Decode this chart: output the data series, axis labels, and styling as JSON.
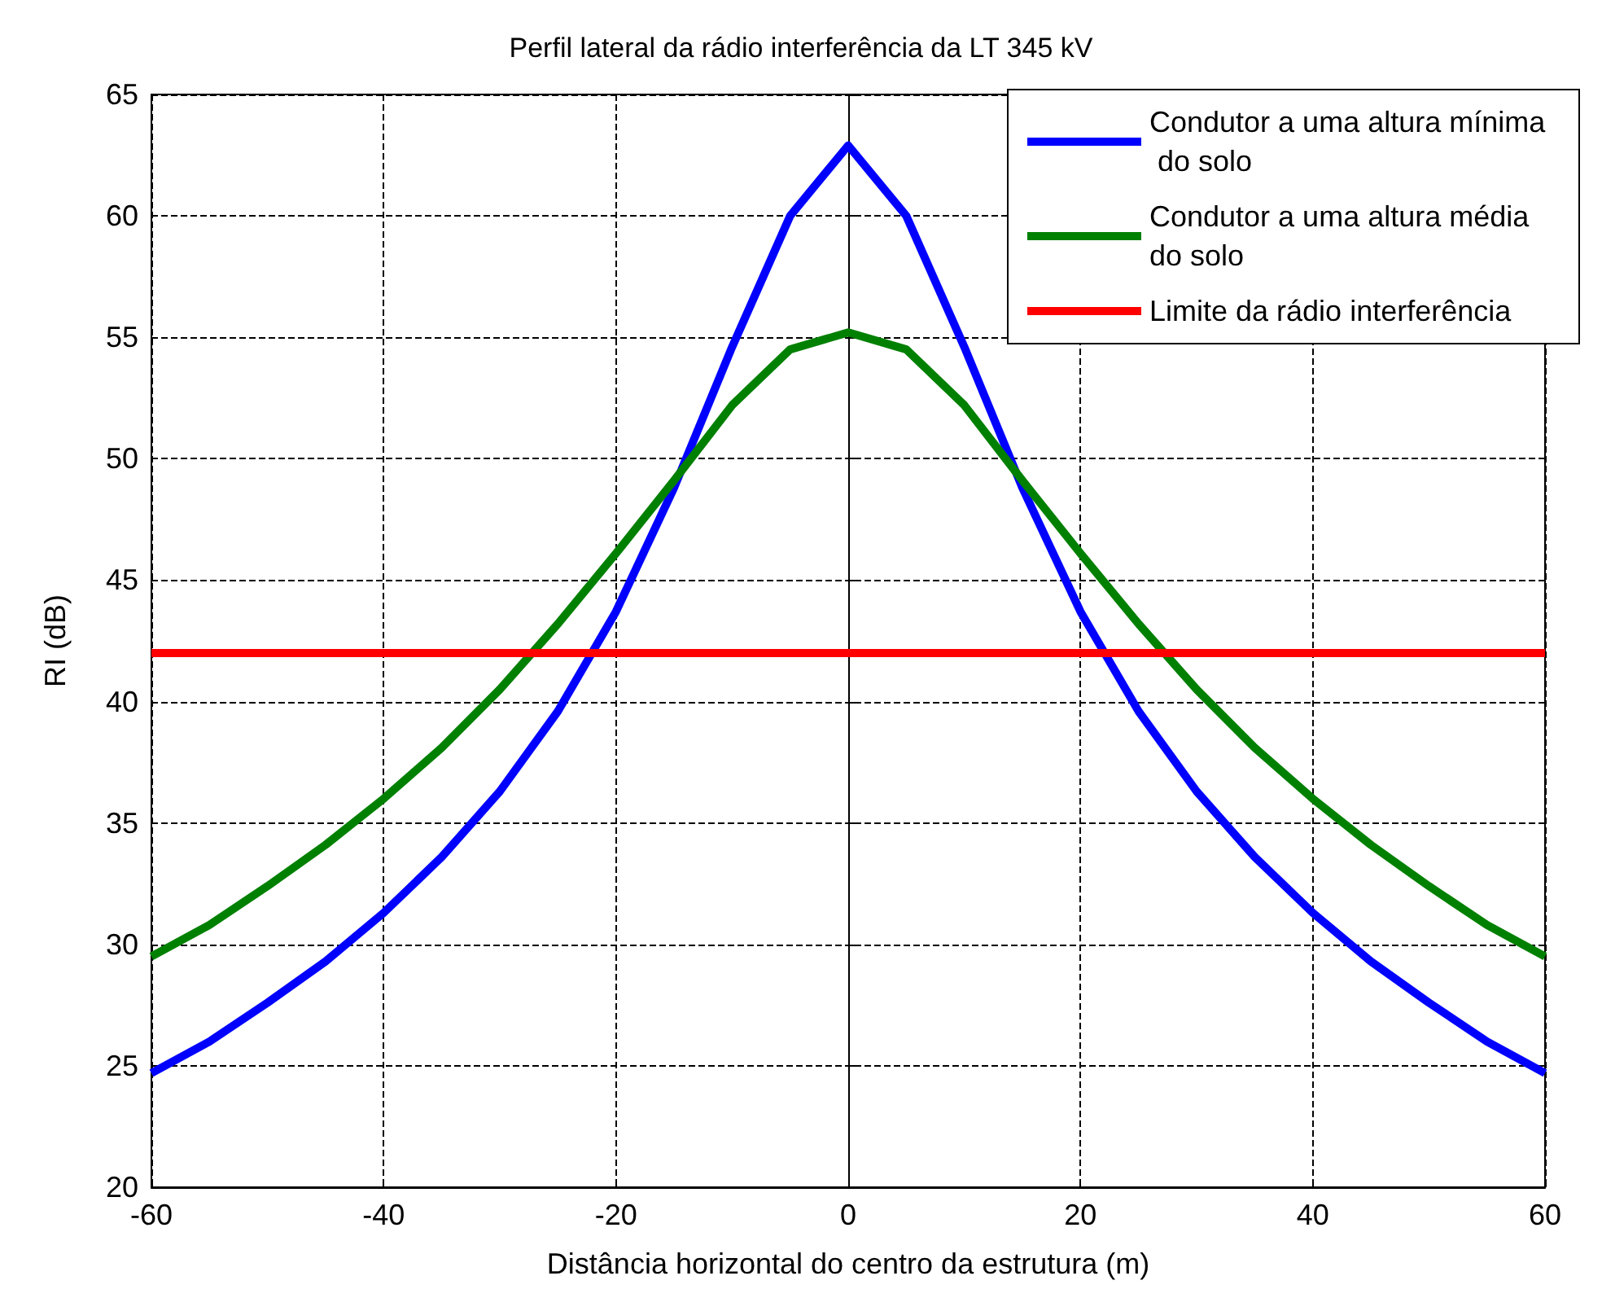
{
  "chart_data": {
    "type": "line",
    "title": "Perfil lateral da rádio interferência da LT 345 kV",
    "xlabel": "Distância horizontal do centro da estrutura (m)",
    "ylabel": "RI (dB)",
    "x": [
      -60,
      -55,
      -50,
      -45,
      -40,
      -35,
      -30,
      -25,
      -20,
      -15,
      -10,
      -5,
      0,
      5,
      10,
      15,
      20,
      25,
      30,
      35,
      40,
      45,
      50,
      55,
      60
    ],
    "series": [
      {
        "name": "Condutor a uma altura mínima do solo",
        "color": "#0000ff",
        "values": [
          24.7,
          26.0,
          27.6,
          29.3,
          31.3,
          33.6,
          36.3,
          39.6,
          43.7,
          48.8,
          54.6,
          60.0,
          62.9,
          60.0,
          54.6,
          48.8,
          43.7,
          39.6,
          36.3,
          33.6,
          31.3,
          29.3,
          27.6,
          26.0,
          24.7
        ]
      },
      {
        "name": "Condutor a uma altura média do solo",
        "color": "#008000",
        "values": [
          29.5,
          30.8,
          32.4,
          34.1,
          36.0,
          38.1,
          40.5,
          43.2,
          46.1,
          49.1,
          52.2,
          54.5,
          55.2,
          54.5,
          52.2,
          49.1,
          46.1,
          43.2,
          40.5,
          38.1,
          36.0,
          34.1,
          32.4,
          30.8,
          29.5
        ]
      },
      {
        "name": "Limite da rádio interferência",
        "color": "#ff0000",
        "x": [
          -60,
          60
        ],
        "values": [
          42,
          42
        ]
      }
    ],
    "xlim": [
      -60,
      60
    ],
    "xticks": [
      -60,
      -40,
      -20,
      0,
      20,
      40,
      60
    ],
    "ylim": [
      20,
      65
    ],
    "yticks": [
      20,
      25,
      30,
      35,
      40,
      45,
      50,
      55,
      60,
      65
    ],
    "grid": true,
    "legend": "top right",
    "marker": "none",
    "line_style": "solid"
  }
}
